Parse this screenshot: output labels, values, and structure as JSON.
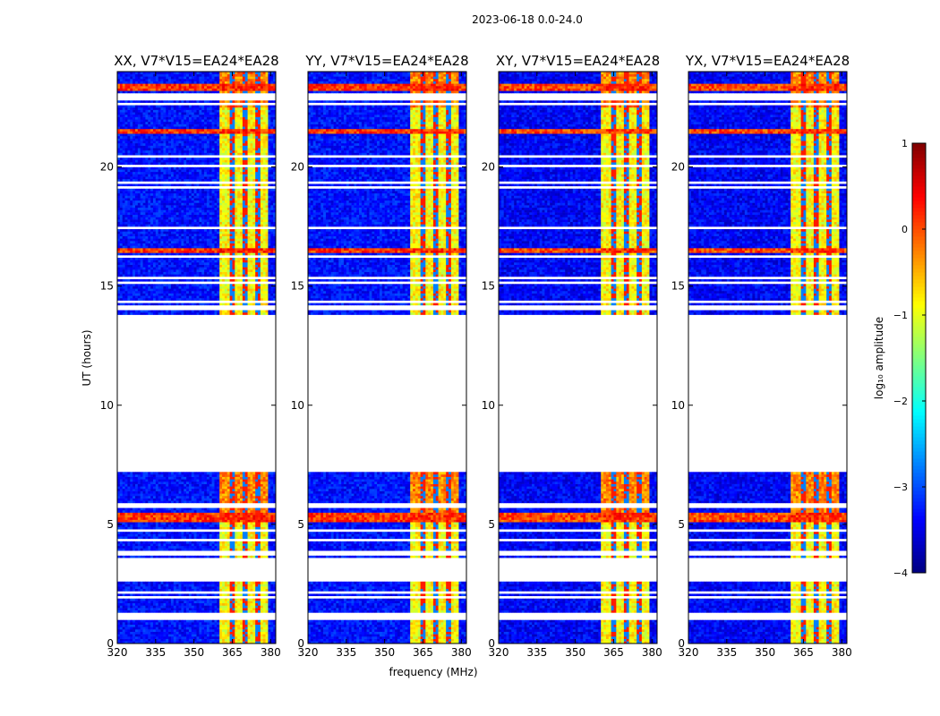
{
  "chart_data": {
    "type": "heatmap",
    "suptitle": "2023-06-18 0.0-24.0",
    "xlabel": "frequency (MHz)",
    "ylabel": "UT (hours)",
    "xlim": [
      320,
      382
    ],
    "ylim": [
      0,
      24
    ],
    "xticks": [
      320,
      335,
      350,
      365,
      380
    ],
    "yticks": [
      0,
      5,
      10,
      15,
      20
    ],
    "panels": [
      {
        "title": "XX, V7*V15=EA24*EA28",
        "pol": "XX"
      },
      {
        "title": "YY, V7*V15=EA24*EA28",
        "pol": "YY"
      },
      {
        "title": "XY, V7*V15=EA24*EA28",
        "pol": "XY"
      },
      {
        "title": "YX, V7*V15=EA24*EA28",
        "pol": "YX"
      }
    ],
    "rfi_band_mhz": [
      359.5,
      378.5
    ],
    "rfi_channel_gaps_mhz": [
      364.5,
      369.5,
      374.5
    ],
    "data_gaps_ut": [
      [
        2.6,
        3.6
      ],
      [
        7.1,
        13.7
      ]
    ],
    "flagged_rows_ut": [
      1.05,
      1.2,
      1.9,
      2.1,
      3.75,
      4.3,
      4.7,
      5.75,
      14.05,
      14.3,
      15.1,
      15.3,
      16.2,
      17.4,
      19.1,
      19.3,
      20.0,
      20.4,
      22.6,
      22.8,
      22.95
    ],
    "bright_rows_ut": [
      [
        5.05,
        5.45
      ],
      [
        16.35,
        16.55
      ],
      [
        21.4,
        21.6
      ],
      [
        23.2,
        23.5
      ]
    ],
    "colorbar": {
      "label": "log₁₀ amplitude",
      "range": [
        -4,
        1
      ],
      "ticks": [
        1,
        0,
        -1,
        -2,
        -3,
        -4
      ],
      "colormap": "jet"
    }
  }
}
